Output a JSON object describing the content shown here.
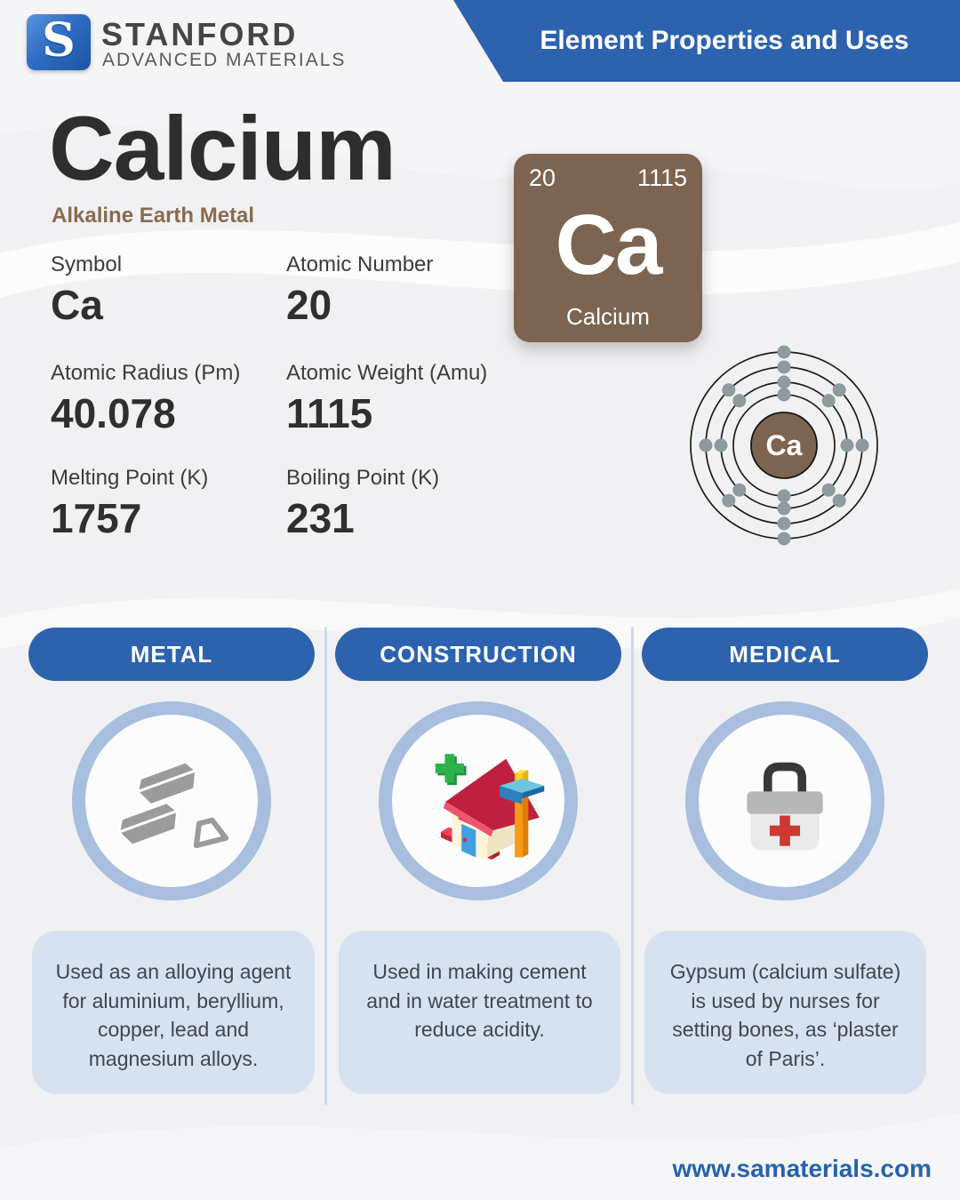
{
  "brand": {
    "mark": "S",
    "name": "STANFORD",
    "tagline": "ADVANCED MATERIALS"
  },
  "header": {
    "banner": "Element Properties and Uses"
  },
  "element": {
    "name": "Calcium",
    "category": "Alkaline Earth Metal",
    "tile": {
      "atomic_number": "20",
      "atomic_weight": "1115",
      "symbol": "Ca",
      "name": "Calcium"
    },
    "nucleus_symbol": "Ca"
  },
  "properties": [
    {
      "label": "Symbol",
      "value": "Ca"
    },
    {
      "label": "Atomic Number",
      "value": "20"
    },
    {
      "label": "Atomic Radius (Pm)",
      "value": "40.078"
    },
    {
      "label": "Atomic Weight (Amu)",
      "value": "1115"
    },
    {
      "label": "Melting Point (K)",
      "value": "1757"
    },
    {
      "label": "Boiling Point (K)",
      "value": "231"
    }
  ],
  "bohr": {
    "shells": [
      2,
      8,
      8,
      2
    ]
  },
  "uses": [
    {
      "category": "METAL",
      "icon": "metal-ingots-icon",
      "description": "Used as an alloying agent for aluminium, beryllium, copper, lead and magnesium alloys."
    },
    {
      "category": "CONSTRUCTION",
      "icon": "construction-house-icon",
      "description": "Used in making cement and in water treatment to reduce acidity."
    },
    {
      "category": "MEDICAL",
      "icon": "first-aid-kit-icon",
      "description": "Gypsum (calcium sulfate) is used by nurses for setting bones, as ‘plaster of Paris’."
    }
  ],
  "footer": {
    "website": "www.samaterials.com"
  },
  "colors": {
    "primary_blue": "#2d63ae",
    "tile_brown": "#7d6450",
    "category_brown": "#8a6a50",
    "ring_blue": "#a7bedf",
    "panel_blue": "#d6e2f0",
    "electron_gray": "#8d9a9e",
    "footer_blue": "#2563ac"
  }
}
